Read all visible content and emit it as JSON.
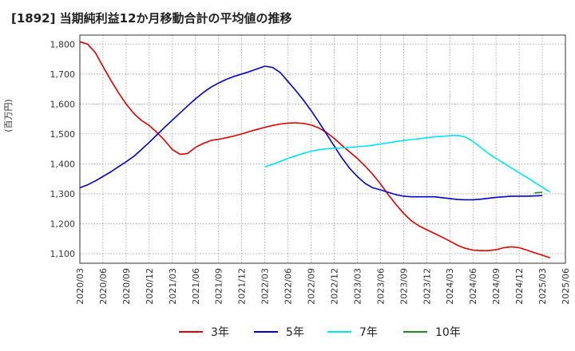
{
  "title": "[1892]  当期純利益12か月移動合計の平均値の推移",
  "chart_data": {
    "type": "line",
    "title": "[1892]  当期純利益12か月移動合計の平均値の推移",
    "ylabel": "(百万円)",
    "xlabel": "",
    "ylim": [
      1068,
      1830
    ],
    "yticks": [
      1100,
      1200,
      1300,
      1400,
      1500,
      1600,
      1700,
      1800
    ],
    "ytick_labels": [
      "1,100",
      "1,200",
      "1,300",
      "1,400",
      "1,500",
      "1,600",
      "1,700",
      "1,800"
    ],
    "xtick_labels": [
      "2020/03",
      "2020/06",
      "2020/09",
      "2020/12",
      "2021/03",
      "2021/06",
      "2021/09",
      "2021/12",
      "2022/03",
      "2022/06",
      "2022/09",
      "2022/12",
      "2023/03",
      "2023/06",
      "2023/09",
      "2023/12",
      "2024/03",
      "2024/06",
      "2024/09",
      "2024/12",
      "2025/03",
      "2025/06"
    ],
    "grid": true,
    "legend_position": "bottom",
    "series": [
      {
        "name": "3年",
        "color": "#dd0000",
        "start": "2020/03",
        "values": [
          1808,
          1800,
          1772,
          1725,
          1680,
          1638,
          1600,
          1568,
          1545,
          1528,
          1505,
          1478,
          1448,
          1432,
          1435,
          1455,
          1468,
          1478,
          1482,
          1487,
          1493,
          1500,
          1508,
          1515,
          1522,
          1528,
          1533,
          1536,
          1537,
          1535,
          1530,
          1520,
          1505,
          1485,
          1462,
          1440,
          1418,
          1393,
          1365,
          1333,
          1298,
          1265,
          1235,
          1210,
          1193,
          1180,
          1168,
          1155,
          1142,
          1128,
          1118,
          1112,
          1110,
          1110,
          1113,
          1120,
          1123,
          1120,
          1112,
          1103,
          1095,
          1086
        ]
      },
      {
        "name": "5年",
        "color": "#0000cc",
        "start": "2020/03",
        "values": [
          1320,
          1330,
          1343,
          1358,
          1373,
          1390,
          1407,
          1425,
          1448,
          1472,
          1497,
          1522,
          1546,
          1570,
          1594,
          1617,
          1638,
          1656,
          1670,
          1682,
          1692,
          1700,
          1708,
          1717,
          1726,
          1722,
          1705,
          1675,
          1645,
          1613,
          1578,
          1540,
          1500,
          1460,
          1420,
          1385,
          1358,
          1335,
          1320,
          1313,
          1305,
          1297,
          1292,
          1290,
          1290,
          1290,
          1290,
          1287,
          1284,
          1281,
          1280,
          1280,
          1282,
          1285,
          1288,
          1290,
          1292,
          1292,
          1292,
          1293,
          1294
        ]
      },
      {
        "name": "7年",
        "color": "#00e5ee",
        "start": "2022/03",
        "values": [
          1390,
          1398,
          1408,
          1418,
          1427,
          1435,
          1442,
          1447,
          1450,
          1452,
          1453,
          1455,
          1457,
          1459,
          1462,
          1466,
          1470,
          1474,
          1478,
          1481,
          1484,
          1487,
          1490,
          1492,
          1494,
          1495,
          1490,
          1475,
          1455,
          1435,
          1418,
          1402,
          1386,
          1370,
          1355,
          1338,
          1322,
          1306
        ]
      },
      {
        "name": "10年",
        "color": "#228b22",
        "start": "2025/02",
        "values": [
          1303,
          1305
        ]
      }
    ]
  }
}
